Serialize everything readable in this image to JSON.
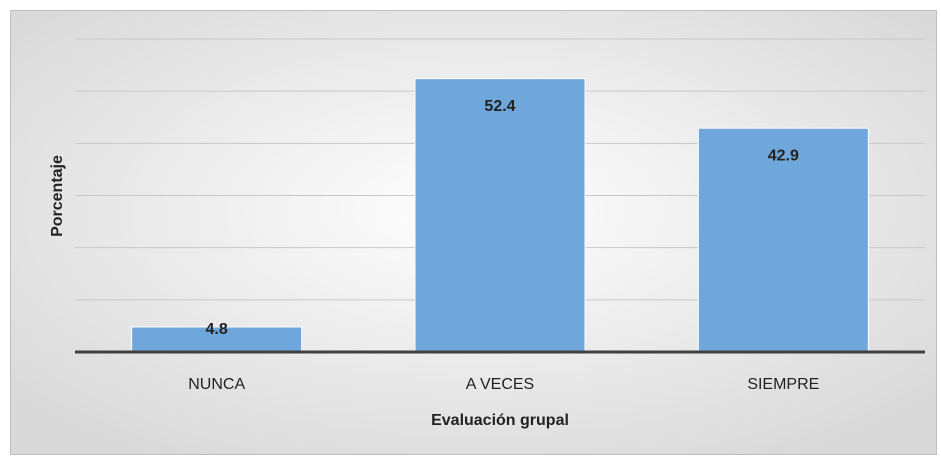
{
  "chart_data": {
    "type": "bar",
    "x_label": "Evaluación grupal",
    "y_label": "Porcentaje",
    "categories": [
      "NUNCA",
      "A VECES",
      "SIEMPRE"
    ],
    "values": [
      4.8,
      52.4,
      42.9
    ],
    "color": "#6fa6dc",
    "ylim": [
      0,
      60
    ],
    "yticks": [
      0,
      10,
      20,
      30,
      40,
      50,
      60
    ],
    "grid": true
  }
}
